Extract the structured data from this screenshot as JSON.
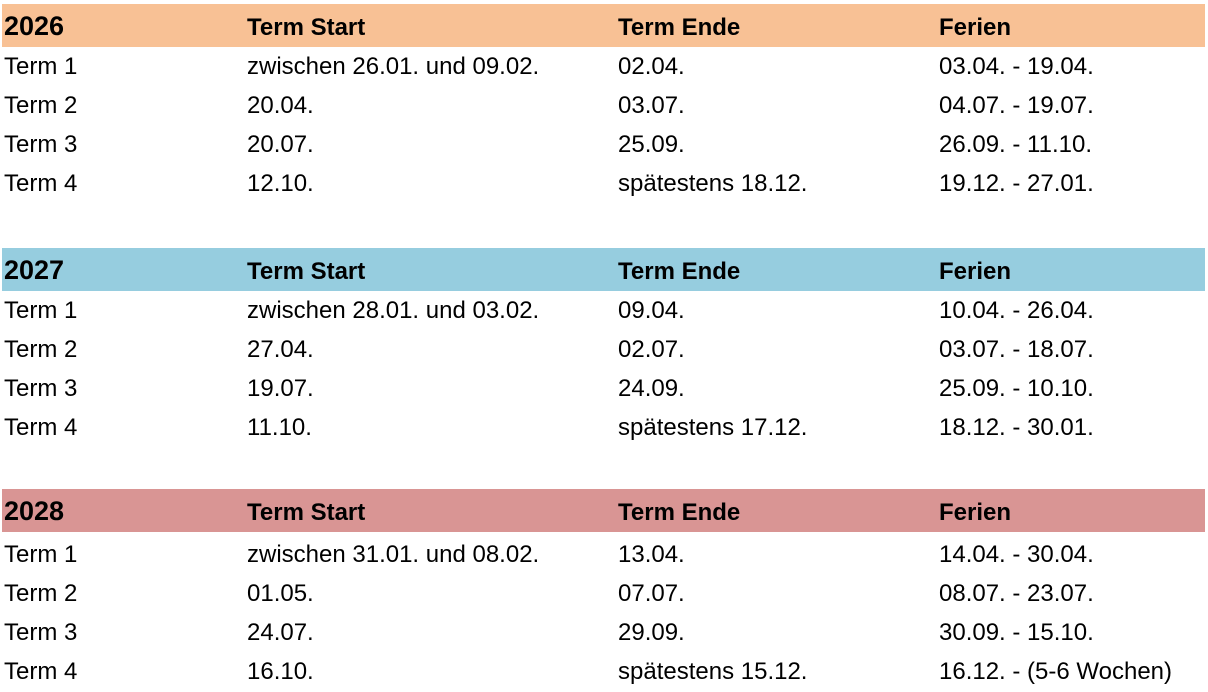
{
  "colors": {
    "header_2026": "#f8c195",
    "header_2027": "#96cddf",
    "header_2028": "#d99594"
  },
  "blocks": [
    {
      "year": "2026",
      "headers": [
        "Term Start",
        "Term Ende",
        "Ferien"
      ],
      "rows": [
        [
          "Term 1",
          "zwischen 26.01. und 09.02.",
          "02.04.",
          "03.04. - 19.04."
        ],
        [
          "Term 2",
          "20.04.",
          "03.07.",
          "04.07. - 19.07."
        ],
        [
          "Term 3",
          "20.07.",
          "25.09.",
          "26.09. - 11.10."
        ],
        [
          "Term 4",
          "12.10.",
          "spätestens 18.12.",
          "19.12. - 27.01."
        ]
      ]
    },
    {
      "year": "2027",
      "headers": [
        "Term Start",
        "Term Ende",
        "Ferien"
      ],
      "rows": [
        [
          "Term 1",
          "zwischen 28.01. und 03.02.",
          "09.04.",
          "10.04. - 26.04."
        ],
        [
          "Term 2",
          "27.04.",
          "02.07.",
          "03.07. - 18.07."
        ],
        [
          "Term 3",
          "19.07.",
          "24.09.",
          "25.09. - 10.10."
        ],
        [
          "Term 4",
          "11.10.",
          "spätestens 17.12.",
          "18.12. - 30.01."
        ]
      ]
    },
    {
      "year": "2028",
      "headers": [
        "Term Start",
        "Term Ende",
        "Ferien"
      ],
      "rows": [
        [
          "Term 1",
          "zwischen 31.01. und 08.02.",
          "13.04.",
          "14.04. - 30.04."
        ],
        [
          "Term 2",
          "01.05.",
          "07.07.",
          "08.07. - 23.07."
        ],
        [
          "Term 3",
          "24.07.",
          "29.09.",
          "30.09. - 15.10."
        ],
        [
          "Term 4",
          "16.10.",
          "spätestens 15.12.",
          "16.12. - (5-6 Wochen)"
        ]
      ]
    }
  ]
}
